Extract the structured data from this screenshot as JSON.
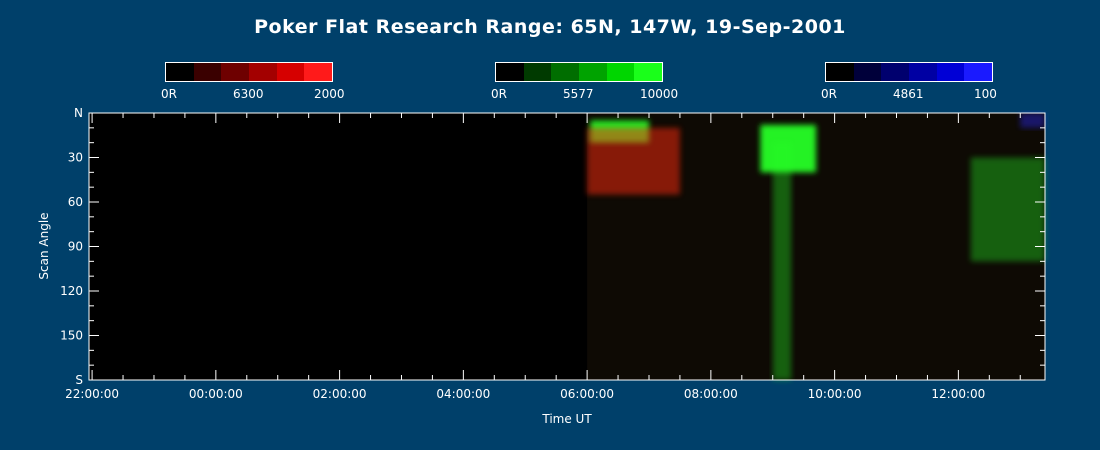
{
  "title": "Poker Flat Research Range: 65N, 147W, 19-Sep-2001",
  "colorbars": [
    {
      "channel": "red",
      "low_label": "0R",
      "mid_label": "6300",
      "high_label": "2000",
      "colors": [
        "#000000",
        "#3a0000",
        "#6e0000",
        "#a30000",
        "#d60000",
        "#ff1a1a"
      ]
    },
    {
      "channel": "green",
      "low_label": "0R",
      "mid_label": "5577",
      "high_label": "10000",
      "colors": [
        "#000000",
        "#003a00",
        "#006e00",
        "#00a300",
        "#00d600",
        "#1aff1a"
      ]
    },
    {
      "channel": "blue",
      "low_label": "0R",
      "mid_label": "4861",
      "high_label": "100",
      "colors": [
        "#000000",
        "#00003a",
        "#00006e",
        "#0000a3",
        "#0000d6",
        "#1a1aff"
      ]
    }
  ],
  "chart_data": {
    "type": "heatmap",
    "title": "Poker Flat Research Range: 65N, 147W, 19-Sep-2001",
    "xlabel": "Time UT",
    "ylabel": "Scan Angle",
    "x_ticks": [
      "22:00:00",
      "00:00:00",
      "02:00:00",
      "04:00:00",
      "06:00:00",
      "08:00:00",
      "10:00:00",
      "12:00:00"
    ],
    "x_tick_hours": [
      -2,
      0,
      2,
      4,
      6,
      8,
      10,
      12
    ],
    "xlim_hours": [
      -2.05,
      13.4
    ],
    "y_ticks": [
      "N",
      "30",
      "60",
      "90",
      "120",
      "150",
      "S"
    ],
    "y_tick_values": [
      0,
      30,
      60,
      90,
      120,
      150,
      180
    ],
    "ylim": [
      0,
      180
    ],
    "data_start_hour": 6.0,
    "emission_features": [
      {
        "channel": "green",
        "wavelength": "5577",
        "start_hour": 6.05,
        "end_hour": 7.0,
        "angle_min": 5,
        "angle_max": 20,
        "level": 0.9
      },
      {
        "channel": "red",
        "wavelength": "6300",
        "start_hour": 6.0,
        "end_hour": 7.5,
        "angle_min": 10,
        "angle_max": 55,
        "level": 0.5
      },
      {
        "channel": "green",
        "wavelength": "5577",
        "start_hour": 8.8,
        "end_hour": 9.7,
        "angle_min": 8,
        "angle_max": 40,
        "level": 0.95
      },
      {
        "channel": "green",
        "wavelength": "5577",
        "start_hour": 9.0,
        "end_hour": 9.3,
        "angle_min": 20,
        "angle_max": 180,
        "level": 0.35
      },
      {
        "channel": "green",
        "wavelength": "5577",
        "start_hour": 12.2,
        "end_hour": 13.4,
        "angle_min": 30,
        "angle_max": 100,
        "level": 0.35
      },
      {
        "channel": "blue",
        "wavelength": "4861",
        "start_hour": 13.0,
        "end_hour": 13.4,
        "angle_min": 0,
        "angle_max": 10,
        "level": 0.4
      }
    ]
  }
}
